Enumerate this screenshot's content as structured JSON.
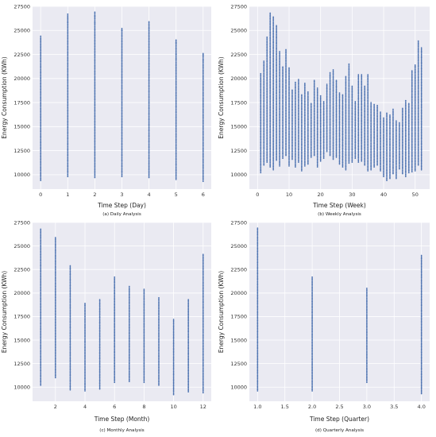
{
  "chart_data": [
    {
      "id": "daily",
      "type": "scatter",
      "caption": "(a) Daily Analysis",
      "xlabel": "Time Step (Day)",
      "ylabel": "Energy Consumption (KWh)",
      "xlim": [
        -0.3,
        6.3
      ],
      "ylim": [
        8500,
        27500
      ],
      "xticks": [
        0,
        1,
        2,
        3,
        4,
        5,
        6
      ],
      "xtick_labels": [
        "0",
        "1",
        "2",
        "3",
        "4",
        "5",
        "6"
      ],
      "yticks": [
        10000,
        12500,
        15000,
        17500,
        20000,
        22500,
        25000,
        27500
      ],
      "ytick_labels": [
        "10000",
        "12500",
        "15000",
        "17500",
        "20000",
        "22500",
        "25000",
        "27500"
      ],
      "grid": true,
      "color": "#4c72b0",
      "series": [
        {
          "x": [
            0,
            1,
            2,
            3,
            4,
            5,
            6
          ],
          "y_min": [
            9400,
            9800,
            9700,
            9800,
            9700,
            9500,
            9300
          ],
          "y_max": [
            24400,
            26700,
            26900,
            25200,
            25900,
            24000,
            22600
          ],
          "outliers": [
            [],
            [
              26300,
              25800
            ],
            [
              26500,
              25800
            ],
            [
              25000
            ],
            [
              25200
            ],
            [
              23700,
              22500,
              22100
            ],
            [
              22400,
              21900
            ]
          ]
        }
      ]
    },
    {
      "id": "weekly",
      "type": "scatter",
      "caption": "(b) Weekly Analysis",
      "xlabel": "Time Step (Week)",
      "ylabel": "Energy Consumption (KWh)",
      "xlim": [
        -2.6,
        54.6
      ],
      "ylim": [
        8500,
        27500
      ],
      "xticks": [
        0,
        10,
        20,
        30,
        40,
        50
      ],
      "xtick_labels": [
        "0",
        "10",
        "20",
        "30",
        "40",
        "50"
      ],
      "yticks": [
        10000,
        12500,
        15000,
        17500,
        20000,
        22500,
        25000,
        27500
      ],
      "ytick_labels": [
        "10000",
        "12500",
        "15000",
        "17500",
        "20000",
        "22500",
        "25000",
        "27500"
      ],
      "grid": true,
      "color": "#4c72b0",
      "series": [
        {
          "x": [
            1,
            2,
            3,
            4,
            5,
            6,
            7,
            8,
            9,
            10,
            11,
            12,
            13,
            14,
            15,
            16,
            17,
            18,
            19,
            20,
            21,
            22,
            23,
            24,
            25,
            26,
            27,
            28,
            29,
            30,
            31,
            32,
            33,
            34,
            35,
            36,
            37,
            38,
            39,
            40,
            41,
            42,
            43,
            44,
            45,
            46,
            47,
            48,
            49,
            50,
            51,
            52
          ],
          "y_min": [
            10200,
            11000,
            11300,
            10800,
            10500,
            11500,
            10900,
            11700,
            12000,
            10900,
            11600,
            10800,
            11300,
            10400,
            10900,
            11100,
            11800,
            12000,
            10800,
            11400,
            11700,
            12400,
            12000,
            11600,
            11800,
            11100,
            10800,
            10500,
            11200,
            11300,
            11700,
            11300,
            11400,
            11000,
            10400,
            10500,
            10800,
            11000,
            10400,
            9800,
            9400,
            9600,
            10100,
            9600,
            10600,
            10100,
            9800,
            10200,
            10300,
            10400,
            11000,
            10500
          ],
          "y_max": [
            20500,
            21800,
            24300,
            26800,
            26400,
            25500,
            22800,
            21200,
            23000,
            21100,
            18800,
            19600,
            19900,
            18300,
            19500,
            18600,
            17400,
            19800,
            19000,
            18200,
            17600,
            19400,
            20600,
            20900,
            19800,
            18500,
            18300,
            20200,
            21500,
            19200,
            17600,
            20400,
            20400,
            19200,
            20400,
            17500,
            17300,
            17200,
            16500,
            15900,
            16400,
            16200,
            16800,
            15600,
            15400,
            16900,
            17700,
            17400,
            20800,
            21400,
            23900,
            23200
          ]
        }
      ]
    },
    {
      "id": "monthly",
      "type": "scatter",
      "caption": "(c) Monthly Analysis",
      "xlabel": "Time Step (Month)",
      "ylabel": "Energy Consumption (KWh)",
      "xlim": [
        0.45,
        12.55
      ],
      "ylim": [
        8500,
        27500
      ],
      "xticks": [
        2,
        4,
        6,
        8,
        10,
        12
      ],
      "xtick_labels": [
        "2",
        "4",
        "6",
        "8",
        "10",
        "12"
      ],
      "yticks": [
        10000,
        12500,
        15000,
        17500,
        20000,
        22500,
        25000,
        27500
      ],
      "ytick_labels": [
        "10000",
        "12500",
        "15000",
        "17500",
        "20000",
        "22500",
        "25000",
        "27500"
      ],
      "grid": true,
      "color": "#4c72b0",
      "series": [
        {
          "x": [
            1,
            2,
            3,
            4,
            5,
            6,
            7,
            8,
            9,
            10,
            11,
            12
          ],
          "y_min": [
            10200,
            11000,
            9700,
            9600,
            9800,
            10500,
            10600,
            10500,
            10200,
            9200,
            9500,
            9400
          ],
          "y_max": [
            26800,
            25900,
            22900,
            18900,
            19300,
            21700,
            20700,
            20400,
            19500,
            17200,
            19300,
            24100
          ]
        }
      ]
    },
    {
      "id": "quarterly",
      "type": "scatter",
      "caption": "(d) Quarterly Analysis",
      "xlabel": "Time Step (Quarter)",
      "ylabel": "Energy Consumption (KWh)",
      "xlim": [
        0.85,
        4.15
      ],
      "ylim": [
        8500,
        27500
      ],
      "xticks": [
        1.0,
        1.5,
        2.0,
        2.5,
        3.0,
        3.5,
        4.0
      ],
      "xtick_labels": [
        "1.0",
        "1.5",
        "2.0",
        "2.5",
        "3.0",
        "3.5",
        "4.0"
      ],
      "yticks": [
        10000,
        12500,
        15000,
        17500,
        20000,
        22500,
        25000,
        27500
      ],
      "ytick_labels": [
        "10000",
        "12500",
        "15000",
        "17500",
        "20000",
        "22500",
        "25000",
        "27500"
      ],
      "grid": true,
      "color": "#4c72b0",
      "series": [
        {
          "x": [
            1,
            2,
            3,
            4
          ],
          "y_min": [
            9600,
            9600,
            10500,
            9300
          ],
          "y_max": [
            26900,
            21700,
            20500,
            24000
          ]
        }
      ]
    }
  ]
}
